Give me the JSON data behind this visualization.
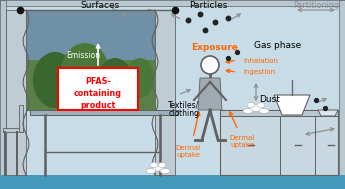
{
  "bg_color": "#c8dce8",
  "floor_color": "#4499bb",
  "orange": "#ff6600",
  "dgray": "#606060",
  "mgray": "#909090",
  "lgray": "#b8c8d0",
  "curtain_color": "#c0ccd4",
  "win_sky": "#7090a8",
  "win_tree_dark": "#3a6630",
  "win_tree_mid": "#4a7838",
  "win_bg": "#5a8045",
  "table_color": "#9ab0bc",
  "cabinet_color": "#c8d8e0",
  "labels": {
    "surfaces": "Surfaces",
    "particles": "Particles",
    "gas_phase": "Gas phase",
    "partitioning": "Partitioning",
    "emission": "Emission",
    "pfas1": "PFAS-",
    "pfas2": "containing",
    "pfas3": "product",
    "exposure": "Exposure",
    "inhalation": "Inhalation",
    "ingestion": "Ingestion",
    "textiles1": "Textiles/",
    "textiles2": "clothing",
    "dermal1a": "Dermal",
    "dermal1b": "uptake",
    "dermal2a": "Dermal",
    "dermal2b": "uptake",
    "dust": "Dust"
  }
}
